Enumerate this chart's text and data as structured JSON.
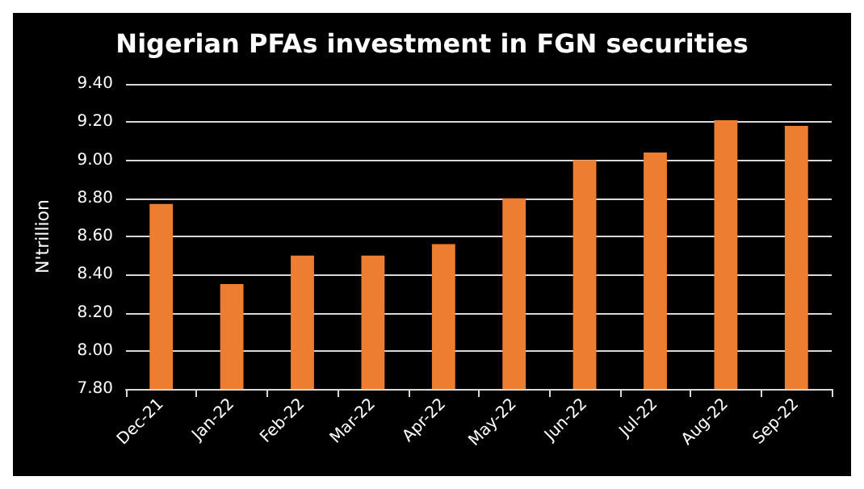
{
  "chart_data": {
    "type": "bar",
    "title": "Nigerian PFAs investment in FGN securities",
    "ylabel": "N'trillion",
    "categories": [
      "Dec-21",
      "Jan-22",
      "Feb-22",
      "Mar-22",
      "Apr-22",
      "May-22",
      "Jun-22",
      "Jul-22",
      "Aug-22",
      "Sep-22"
    ],
    "values": [
      8.77,
      8.35,
      8.5,
      8.5,
      8.56,
      8.8,
      9.0,
      9.04,
      9.21,
      9.18
    ],
    "color": "#ed7d31",
    "ylim": [
      7.8,
      9.4
    ],
    "yticks": [
      {
        "value": 7.8,
        "label": "7.80"
      },
      {
        "value": 8.0,
        "label": "8.00"
      },
      {
        "value": 8.2,
        "label": "8.20"
      },
      {
        "value": 8.4,
        "label": "8.40"
      },
      {
        "value": 8.6,
        "label": "8.60"
      },
      {
        "value": 8.8,
        "label": "8.80"
      },
      {
        "value": 9.0,
        "label": "9.00"
      },
      {
        "value": 9.2,
        "label": "9.20"
      },
      {
        "value": 9.4,
        "label": "9.40"
      }
    ],
    "grid": "y"
  }
}
